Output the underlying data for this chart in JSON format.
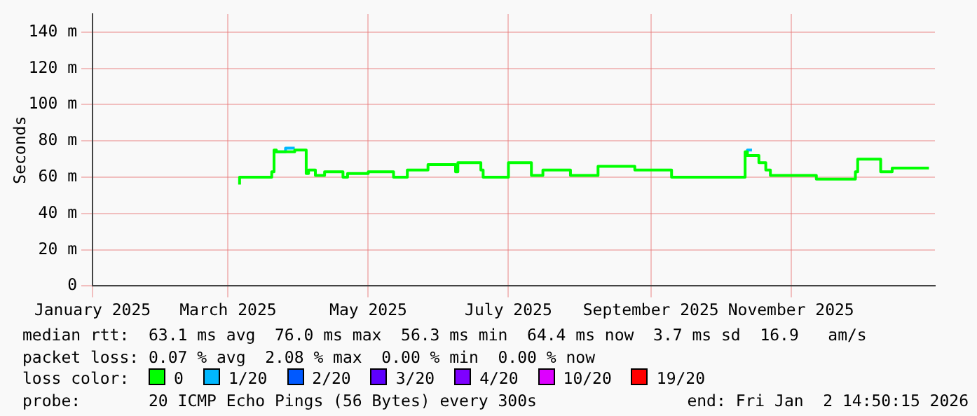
{
  "chart_data": {
    "type": "step",
    "ylabel": "Seconds",
    "xlim": [
      "2025-01-01",
      "2026-01-02T14:50"
    ],
    "xticks": [
      {
        "value": "2025-01-01",
        "label": "January 2025"
      },
      {
        "value": "2025-03-01",
        "label": "March 2025"
      },
      {
        "value": "2025-05-01",
        "label": "May 2025"
      },
      {
        "value": "2025-07-01",
        "label": "July 2025"
      },
      {
        "value": "2025-09-01",
        "label": "September 2025"
      },
      {
        "value": "2025-11-01",
        "label": "November 2025"
      }
    ],
    "ylim": [
      0,
      150
    ],
    "yticks": [
      0,
      {
        "value": 20,
        "label": "20 m"
      },
      {
        "value": 40,
        "label": "40 m"
      },
      {
        "value": 60,
        "label": "60 m"
      },
      {
        "value": 80,
        "label": "80 m"
      },
      {
        "value": 100,
        "label": "100 m"
      },
      {
        "value": 120,
        "label": "120 m"
      },
      {
        "value": 140,
        "label": "140 m"
      }
    ],
    "grid": true,
    "legend": "bottom",
    "legend_title": "loss color:",
    "series": [
      {
        "name": "0",
        "color": "#00ff00",
        "x": [
          "2025-03-06",
          "2025-03-12",
          "2025-03-20",
          "2025-03-21",
          "2025-03-22",
          "2025-03-30",
          "2025-04-04",
          "2025-04-05",
          "2025-04-08",
          "2025-04-12",
          "2025-04-20",
          "2025-04-22",
          "2025-05-01",
          "2025-05-12",
          "2025-05-18",
          "2025-05-27",
          "2025-06-08",
          "2025-06-09",
          "2025-06-19",
          "2025-06-20",
          "2025-07-01",
          "2025-07-11",
          "2025-07-16",
          "2025-07-28",
          "2025-08-09",
          "2025-08-16",
          "2025-08-25",
          "2025-08-27",
          "2025-09-10",
          "2025-09-27",
          "2025-10-12",
          "2025-10-13",
          "2025-10-18",
          "2025-10-21",
          "2025-10-23",
          "2025-11-12",
          "2025-11-29",
          "2025-11-30",
          "2025-12-10",
          "2025-12-15",
          "2025-12-31"
        ],
        "values": [
          56,
          60,
          60,
          63,
          75,
          74,
          75,
          62,
          64,
          61,
          63,
          60,
          62,
          63,
          60,
          64,
          67,
          63,
          68,
          64,
          60,
          68,
          61,
          64,
          61,
          66,
          66,
          64,
          64,
          60,
          60,
          74,
          72,
          68,
          64,
          61,
          59,
          63,
          70,
          63,
          65
        ]
      },
      {
        "name": "1/20",
        "color": "#00b8ff",
        "x": [
          "2025-03-22",
          "2025-03-26",
          "2025-03-30",
          "2025-06-01",
          "2025-10-13",
          "2025-10-15"
        ],
        "values": [
          75,
          74,
          76,
          null,
          74,
          75
        ]
      },
      {
        "name": "2/20",
        "color": "#0059ff"
      },
      {
        "name": "3/20",
        "color": "#5e00ff"
      },
      {
        "name": "4/20",
        "color": "#7e00ff"
      },
      {
        "name": "10/20",
        "color": "#dd00ff"
      },
      {
        "name": "19/20",
        "color": "#ff0000"
      }
    ],
    "annotations": [
      "median rtt:  63.1 ms avg  76.0 ms max  56.3 ms min  64.4 ms now  3.7 ms sd  16.9   am/s",
      "packet loss: 0.07 % avg  2.08 % max  0.00 % min  0.00 % now",
      "probe:       20 ICMP Echo Pings (56 Bytes) every 300s",
      "end: Fri Jan  2 14:50:15 2026"
    ]
  }
}
